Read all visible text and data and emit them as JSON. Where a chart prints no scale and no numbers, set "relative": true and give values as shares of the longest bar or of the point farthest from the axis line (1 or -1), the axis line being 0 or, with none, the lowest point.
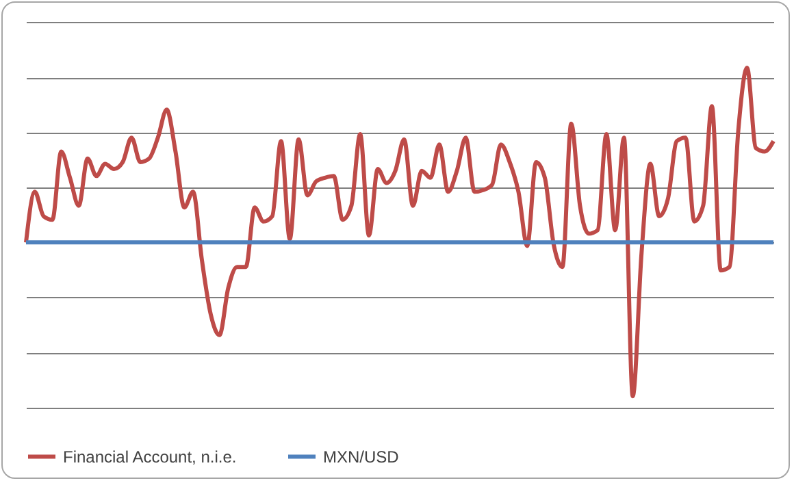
{
  "chart_data": {
    "type": "line",
    "relative": true,
    "grid": "y",
    "legend": "bottom",
    "marker": "none",
    "line_style": "solid",
    "categories": [
      null,
      null,
      null,
      null,
      null,
      null,
      null,
      null,
      null,
      null,
      null,
      null,
      null,
      null,
      null,
      null,
      null,
      null,
      null,
      null,
      null,
      null,
      null,
      null,
      null,
      null,
      null,
      null,
      null,
      null,
      null,
      null,
      null,
      null,
      null,
      null,
      null,
      null,
      null,
      null,
      null,
      null,
      null,
      null,
      null,
      null,
      null,
      null,
      null,
      null,
      null,
      null,
      null,
      null,
      null,
      null,
      null,
      null,
      null,
      null,
      null,
      null,
      null,
      null,
      null,
      null,
      null,
      null,
      null,
      null,
      null,
      null,
      null,
      null,
      null,
      null,
      null,
      null,
      null,
      null,
      null,
      null,
      null,
      null,
      null,
      null
    ],
    "series": [
      {
        "name": "Financial Account, n.i.e.",
        "color": "#be4b48",
        "values": [
          0,
          0.29,
          0.15,
          0.13,
          0.52,
          0.37,
          0.21,
          0.48,
          0.38,
          0.45,
          0.42,
          0.46,
          0.6,
          0.46,
          0.48,
          0.6,
          0.76,
          0.52,
          0.2,
          0.29,
          -0.1,
          -0.41,
          -0.53,
          -0.26,
          -0.14,
          -0.14,
          0.2,
          0.12,
          0.15,
          0.58,
          0.02,
          0.59,
          0.27,
          0.35,
          0.37,
          0.38,
          0.13,
          0.21,
          0.62,
          0.04,
          0.42,
          0.34,
          0.41,
          0.59,
          0.21,
          0.41,
          0.37,
          0.56,
          0.29,
          0.41,
          0.6,
          0.29,
          0.3,
          0.33,
          0.56,
          0.46,
          0.29,
          -0.02,
          0.46,
          0.37,
          -0.01,
          -0.14,
          0.68,
          0.21,
          0.05,
          0.07,
          0.62,
          0.07,
          0.6,
          -0.88,
          -0.06,
          0.45,
          0.15,
          0.25,
          0.58,
          0.6,
          0.12,
          0.21,
          0.78,
          -0.16,
          -0.14,
          0.64,
          1,
          0.54,
          0.52,
          0.58
        ]
      },
      {
        "name": "MXN/USD",
        "color": "#4f81bd",
        "values": [
          0,
          0,
          0,
          0,
          0,
          0,
          0,
          0,
          0,
          0,
          0,
          0,
          0,
          0,
          0,
          0,
          0,
          0,
          0,
          0,
          0,
          0,
          0,
          0,
          0,
          0,
          0,
          0,
          0,
          0,
          0,
          0,
          0,
          0,
          0,
          0,
          0,
          0,
          0,
          0,
          0,
          0,
          0,
          0,
          0,
          0,
          0,
          0,
          0,
          0,
          0,
          0,
          0,
          0,
          0,
          0,
          0,
          0,
          0,
          0,
          0,
          0,
          0,
          0,
          0,
          0,
          0,
          0,
          0,
          0,
          0,
          0,
          0,
          0,
          0,
          0,
          0,
          0,
          0,
          0,
          0,
          0,
          0,
          0,
          0,
          0
        ]
      }
    ]
  }
}
